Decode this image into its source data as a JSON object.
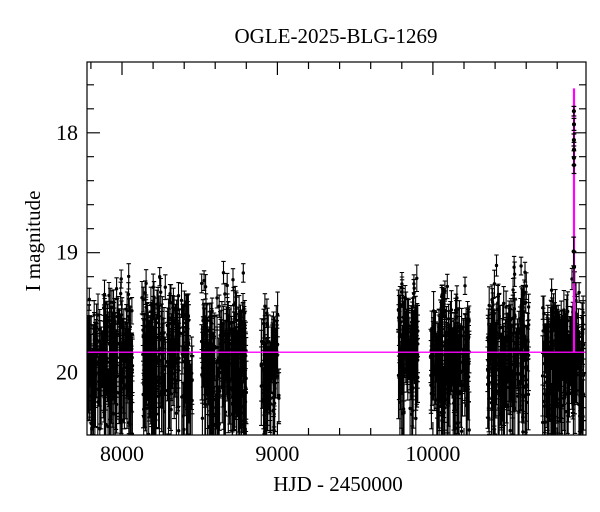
{
  "figure": {
    "title": "OGLE-2025-BLG-1269",
    "xlabel": "HJD - 2450000",
    "ylabel": "I magnitude"
  },
  "chart_data": {
    "type": "scatter",
    "title": "OGLE-2025-BLG-1269",
    "xlabel": "HJD - 2450000",
    "ylabel": "I magnitude",
    "x_axis": {
      "lim": [
        7775,
        10985
      ],
      "major_ticks": [
        8000,
        9000,
        10000
      ],
      "major_tick_labels": [
        "8000",
        "9000",
        "10000"
      ],
      "minor_step": 200
    },
    "y_axis": {
      "lim": [
        17.41,
        20.52
      ],
      "major_ticks": [
        18,
        19,
        20
      ],
      "major_tick_labels": [
        "18",
        "19",
        "20"
      ],
      "minor_step": 0.2,
      "inverted_magnitude_axis": true
    },
    "colors": {
      "data_points": "#000000",
      "model_curve": "#ff00ff",
      "frame": "#000000",
      "background": "#ffffff"
    },
    "model": {
      "description": "point-lens microlensing model: flat baseline with sharp peak near right edge",
      "baseline_mag": 19.83,
      "t_peak": 10908,
      "peak_model_mag": 17.63
    },
    "seasons": [
      {
        "t_range": [
          7778,
          8073
        ],
        "n_points": 210,
        "mag_mean": 19.9,
        "mag_sigma": 0.28,
        "mag_min": 19.18,
        "mag_max": 20.6
      },
      {
        "t_range": [
          8128,
          8452
        ],
        "n_points": 235,
        "mag_mean": 19.88,
        "mag_sigma": 0.28,
        "mag_min": 19.15,
        "mag_max": 20.6
      },
      {
        "t_range": [
          8512,
          8800
        ],
        "n_points": 235,
        "mag_mean": 19.88,
        "mag_sigma": 0.28,
        "mag_min": 19.15,
        "mag_max": 20.6
      },
      {
        "t_range": [
          8895,
          9010
        ],
        "n_points": 80,
        "mag_mean": 19.97,
        "mag_sigma": 0.24,
        "mag_min": 19.3,
        "mag_max": 20.6
      },
      {
        "t_range": [
          9776,
          9905
        ],
        "n_points": 105,
        "mag_mean": 19.82,
        "mag_sigma": 0.3,
        "mag_min": 19.05,
        "mag_max": 20.55
      },
      {
        "t_range": [
          9985,
          10235
        ],
        "n_points": 205,
        "mag_mean": 19.9,
        "mag_sigma": 0.28,
        "mag_min": 19.2,
        "mag_max": 20.6
      },
      {
        "t_range": [
          10350,
          10620
        ],
        "n_points": 205,
        "mag_mean": 19.87,
        "mag_sigma": 0.28,
        "mag_min": 19.1,
        "mag_max": 20.6
      },
      {
        "t_range": [
          10705,
          10970
        ],
        "n_points": 215,
        "mag_mean": 19.88,
        "mag_sigma": 0.28,
        "mag_min": 19.08,
        "mag_max": 20.6
      }
    ],
    "peak_points": [
      {
        "t": 10907,
        "mag": 17.82,
        "err": 0.04
      },
      {
        "t": 10908,
        "mag": 17.93,
        "err": 0.05
      },
      {
        "t": 10907,
        "mag": 18.06,
        "err": 0.05
      },
      {
        "t": 10908,
        "mag": 18.14,
        "err": 0.06
      },
      {
        "t": 10907,
        "mag": 18.21,
        "err": 0.06
      },
      {
        "t": 10908,
        "mag": 18.27,
        "err": 0.07
      },
      {
        "t": 10906,
        "mag": 18.99,
        "err": 0.12
      },
      {
        "t": 10908,
        "mag": 19.12,
        "err": 0.13
      }
    ]
  }
}
